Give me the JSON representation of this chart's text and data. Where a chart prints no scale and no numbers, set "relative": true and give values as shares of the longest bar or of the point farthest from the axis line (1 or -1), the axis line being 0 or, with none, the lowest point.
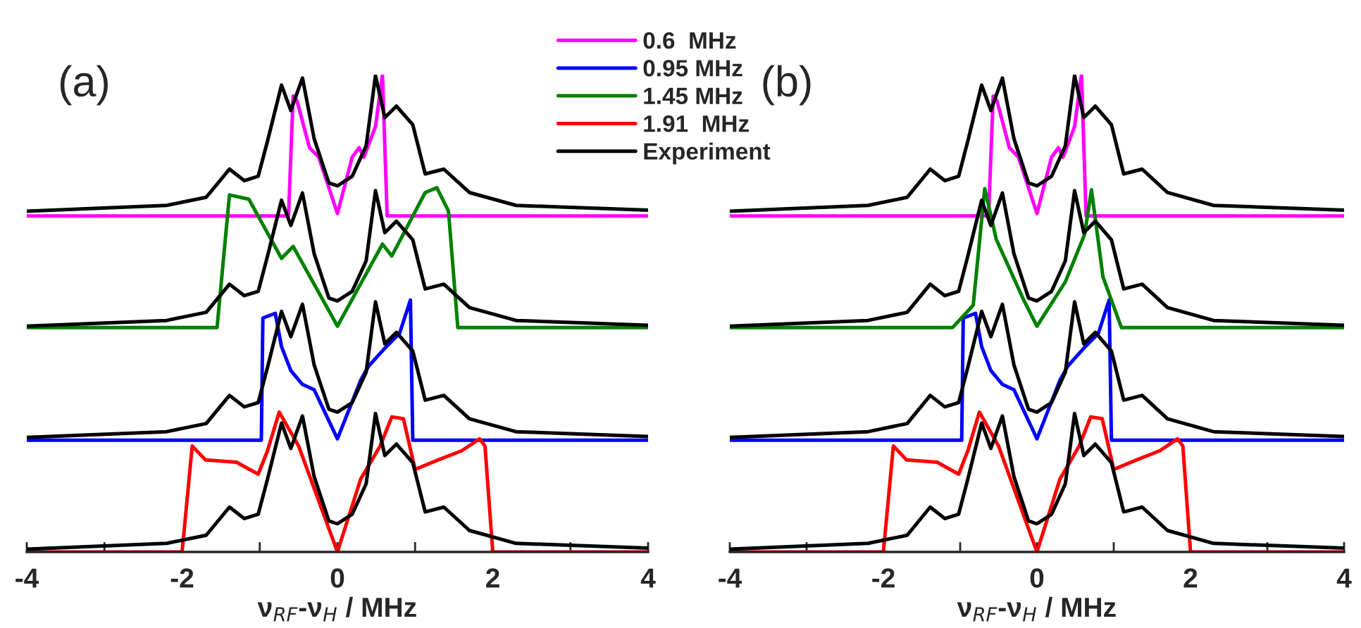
{
  "chart_data": [
    {
      "type": "line",
      "relative": true,
      "xlabel": "ν$_{RF}$-ν$_{H}$ / MHz",
      "annotations": [
        "(a)"
      ],
      "xlim": [
        -4,
        4
      ],
      "xticks": [
        -4,
        {
          "value": -3,
          "label": null
        },
        -2,
        {
          "value": -1,
          "label": null
        },
        0,
        {
          "value": 1,
          "label": null
        },
        2,
        {
          "value": 3,
          "label": null
        },
        4
      ],
      "tick_labels": "x",
      "grid": false,
      "legend": "top right",
      "line_style": "solid",
      "marker": "none",
      "series": [
        {
          "name": "0.6  MHz",
          "color": "#ff00ff",
          "x": [
            -4,
            -0.63,
            -0.57,
            -0.52,
            -0.36,
            -0.24,
            0,
            0.19,
            0.28,
            0.34,
            0.49,
            0.58,
            0.64,
            4
          ],
          "values": [
            0.704,
            0.704,
            0.955,
            0.945,
            0.847,
            0.827,
            0.709,
            0.827,
            0.847,
            0.827,
            0.891,
            1,
            0.704,
            0.704
          ]
        },
        {
          "name": "0.95 MHz",
          "color": "#0000ff",
          "x": [
            -4,
            -0.98,
            -0.96,
            -0.8,
            -0.72,
            -0.6,
            -0.45,
            -0.3,
            0,
            0.3,
            0.4,
            0.6,
            0.8,
            0.94,
            0.97,
            4
          ],
          "values": [
            0.234,
            0.234,
            0.49,
            0.5,
            0.43,
            0.38,
            0.351,
            0.34,
            0.237,
            0.36,
            0.389,
            0.425,
            0.458,
            0.528,
            0.234,
            0.234
          ]
        },
        {
          "name": "1.45 MHz",
          "color": "#008000",
          "x": [
            -4,
            -1.55,
            -1.39,
            -1.14,
            -0.72,
            -0.57,
            0,
            0.58,
            0.7,
            1.13,
            1.28,
            1.43,
            1.55,
            4
          ],
          "values": [
            0.47,
            0.47,
            0.748,
            0.739,
            0.615,
            0.64,
            0.473,
            0.645,
            0.62,
            0.753,
            0.763,
            0.714,
            0.47,
            0.47
          ]
        },
        {
          "name": "1.91  MHz",
          "color": "#ff0000",
          "x": [
            -4,
            -2,
            -1.87,
            -1.7,
            -1.3,
            -1.02,
            -0.9,
            -0.75,
            -0.5,
            0,
            0.3,
            0.55,
            0.7,
            0.85,
            1,
            1.3,
            1.6,
            1.83,
            1.9,
            2,
            4
          ],
          "values": [
            0,
            0,
            0.222,
            0.193,
            0.188,
            0.163,
            0.212,
            0.293,
            0.222,
            0,
            0.153,
            0.222,
            0.283,
            0.279,
            0.173,
            0.193,
            0.212,
            0.237,
            0.222,
            0,
            0
          ]
        },
        {
          "name": "Experiment",
          "color": "#000000",
          "x": [
            -4,
            -2.2,
            -1.69,
            -1.39,
            -1.2,
            -1.02,
            -0.9,
            -0.72,
            -0.6,
            -0.45,
            -0.3,
            -0.11,
            0,
            0.19,
            0.37,
            0.49,
            0.61,
            0.76,
            0.97,
            1.13,
            1.37,
            1.7,
            2.3,
            4
          ],
          "values": [
            0.714,
            0.726,
            0.743,
            0.802,
            0.778,
            0.787,
            0.861,
            0.978,
            0.925,
            0.993,
            0.866,
            0.773,
            0.767,
            0.787,
            0.851,
            0.998,
            0.91,
            0.934,
            0.895,
            0.792,
            0.802,
            0.753,
            0.726,
            0.716
          ]
        },
        {
          "color": "#000000",
          "x": [
            -4,
            -2.2,
            -1.69,
            -1.39,
            -1.2,
            -1.02,
            -0.9,
            -0.72,
            -0.6,
            -0.45,
            -0.3,
            -0.11,
            0,
            0.19,
            0.37,
            0.49,
            0.61,
            0.76,
            0.97,
            1.13,
            1.37,
            1.7,
            2.3,
            4
          ],
          "values": [
            0.473,
            0.485,
            0.502,
            0.561,
            0.537,
            0.546,
            0.62,
            0.737,
            0.684,
            0.752,
            0.625,
            0.532,
            0.526,
            0.546,
            0.61,
            0.757,
            0.669,
            0.693,
            0.654,
            0.551,
            0.561,
            0.512,
            0.485,
            0.475
          ]
        },
        {
          "color": "#000000",
          "x": [
            -4,
            -2.2,
            -1.69,
            -1.39,
            -1.2,
            -1.02,
            -0.9,
            -0.72,
            -0.6,
            -0.45,
            -0.3,
            -0.11,
            0,
            0.19,
            0.37,
            0.49,
            0.61,
            0.76,
            0.97,
            1.13,
            1.37,
            1.7,
            2.3,
            4
          ],
          "values": [
            0.24,
            0.252,
            0.269,
            0.328,
            0.304,
            0.313,
            0.387,
            0.504,
            0.451,
            0.519,
            0.392,
            0.299,
            0.293,
            0.313,
            0.377,
            0.524,
            0.436,
            0.46,
            0.421,
            0.318,
            0.328,
            0.279,
            0.252,
            0.242
          ]
        },
        {
          "color": "#000000",
          "x": [
            -4,
            -2.2,
            -1.69,
            -1.39,
            -1.2,
            -1.02,
            -0.9,
            -0.72,
            -0.6,
            -0.45,
            -0.3,
            -0.11,
            0,
            0.19,
            0.37,
            0.49,
            0.61,
            0.76,
            0.97,
            1.13,
            1.37,
            1.7,
            2.3,
            4
          ],
          "values": [
            0.006,
            0.018,
            0.035,
            0.094,
            0.07,
            0.079,
            0.153,
            0.27,
            0.217,
            0.285,
            0.158,
            0.065,
            0.059,
            0.079,
            0.143,
            0.29,
            0.202,
            0.226,
            0.187,
            0.084,
            0.094,
            0.045,
            0.018,
            0.008
          ]
        }
      ]
    },
    {
      "type": "line",
      "relative": true,
      "xlabel": "ν$_{RF}$-ν$_{H}$ / MHz",
      "annotations": [
        "(b)"
      ],
      "xlim": [
        -4,
        4
      ],
      "xticks": [
        -4,
        {
          "value": -3,
          "label": null
        },
        -2,
        {
          "value": -1,
          "label": null
        },
        0,
        {
          "value": 1,
          "label": null
        },
        2,
        {
          "value": 3,
          "label": null
        },
        4
      ],
      "tick_labels": "x",
      "grid": false,
      "line_style": "solid",
      "marker": "none",
      "series": [
        {
          "color": "#ff00ff",
          "x": [
            -4,
            -0.63,
            -0.57,
            -0.52,
            -0.36,
            -0.24,
            0,
            0.19,
            0.28,
            0.34,
            0.49,
            0.58,
            0.64,
            4
          ],
          "values": [
            0.704,
            0.704,
            0.955,
            0.945,
            0.847,
            0.827,
            0.709,
            0.827,
            0.847,
            0.827,
            0.891,
            1,
            0.704,
            0.704
          ]
        },
        {
          "color": "#0000ff",
          "x": [
            -4,
            -0.98,
            -0.96,
            -0.8,
            -0.72,
            -0.6,
            -0.45,
            -0.3,
            0,
            0.3,
            0.4,
            0.6,
            0.8,
            0.94,
            0.97,
            4
          ],
          "values": [
            0.234,
            0.234,
            0.49,
            0.5,
            0.43,
            0.38,
            0.351,
            0.34,
            0.237,
            0.36,
            0.389,
            0.425,
            0.458,
            0.528,
            0.234,
            0.234
          ]
        },
        {
          "color": "#008000",
          "x": [
            -4,
            -1.1,
            -0.83,
            -0.68,
            -0.53,
            -0.17,
            0,
            0.37,
            0.62,
            0.71,
            0.86,
            1.1,
            4
          ],
          "values": [
            0.47,
            0.47,
            0.517,
            0.761,
            0.655,
            0.527,
            0.473,
            0.566,
            0.665,
            0.759,
            0.576,
            0.47,
            0.47
          ]
        },
        {
          "color": "#ff0000",
          "x": [
            -4,
            -2,
            -1.87,
            -1.7,
            -1.3,
            -1.02,
            -0.9,
            -0.75,
            -0.5,
            0,
            0.3,
            0.55,
            0.7,
            0.85,
            1,
            1.3,
            1.6,
            1.83,
            1.9,
            2,
            4
          ],
          "values": [
            0,
            0,
            0.222,
            0.193,
            0.188,
            0.163,
            0.212,
            0.293,
            0.222,
            0,
            0.153,
            0.222,
            0.283,
            0.279,
            0.173,
            0.193,
            0.212,
            0.237,
            0.222,
            0,
            0
          ]
        },
        {
          "color": "#000000",
          "x": [
            -4,
            -2.2,
            -1.69,
            -1.39,
            -1.2,
            -1.02,
            -0.9,
            -0.72,
            -0.6,
            -0.45,
            -0.3,
            -0.11,
            0,
            0.19,
            0.37,
            0.49,
            0.61,
            0.76,
            0.97,
            1.13,
            1.37,
            1.7,
            2.3,
            4
          ],
          "values": [
            0.714,
            0.726,
            0.743,
            0.802,
            0.778,
            0.787,
            0.861,
            0.978,
            0.925,
            0.993,
            0.866,
            0.773,
            0.767,
            0.787,
            0.851,
            0.998,
            0.91,
            0.934,
            0.895,
            0.792,
            0.802,
            0.753,
            0.726,
            0.716
          ]
        },
        {
          "color": "#000000",
          "x": [
            -4,
            -2.2,
            -1.69,
            -1.39,
            -1.2,
            -1.02,
            -0.9,
            -0.72,
            -0.6,
            -0.45,
            -0.3,
            -0.11,
            0,
            0.19,
            0.37,
            0.49,
            0.61,
            0.76,
            0.97,
            1.13,
            1.37,
            1.7,
            2.3,
            4
          ],
          "values": [
            0.473,
            0.485,
            0.502,
            0.561,
            0.537,
            0.546,
            0.62,
            0.737,
            0.684,
            0.752,
            0.625,
            0.532,
            0.526,
            0.546,
            0.61,
            0.757,
            0.669,
            0.693,
            0.654,
            0.551,
            0.561,
            0.512,
            0.485,
            0.475
          ]
        },
        {
          "color": "#000000",
          "x": [
            -4,
            -2.2,
            -1.69,
            -1.39,
            -1.2,
            -1.02,
            -0.9,
            -0.72,
            -0.6,
            -0.45,
            -0.3,
            -0.11,
            0,
            0.19,
            0.37,
            0.49,
            0.61,
            0.76,
            0.97,
            1.13,
            1.37,
            1.7,
            2.3,
            4
          ],
          "values": [
            0.24,
            0.252,
            0.269,
            0.328,
            0.304,
            0.313,
            0.387,
            0.504,
            0.451,
            0.519,
            0.392,
            0.299,
            0.293,
            0.313,
            0.377,
            0.524,
            0.436,
            0.46,
            0.421,
            0.318,
            0.328,
            0.279,
            0.252,
            0.242
          ]
        },
        {
          "color": "#000000",
          "x": [
            -4,
            -2.2,
            -1.69,
            -1.39,
            -1.2,
            -1.02,
            -0.9,
            -0.72,
            -0.6,
            -0.45,
            -0.3,
            -0.11,
            0,
            0.19,
            0.37,
            0.49,
            0.61,
            0.76,
            0.97,
            1.13,
            1.37,
            1.7,
            2.3,
            4
          ],
          "values": [
            0.006,
            0.018,
            0.035,
            0.094,
            0.07,
            0.079,
            0.153,
            0.27,
            0.217,
            0.285,
            0.158,
            0.065,
            0.059,
            0.079,
            0.143,
            0.29,
            0.202,
            0.226,
            0.187,
            0.084,
            0.094,
            0.045,
            0.018,
            0.008
          ]
        }
      ]
    }
  ]
}
